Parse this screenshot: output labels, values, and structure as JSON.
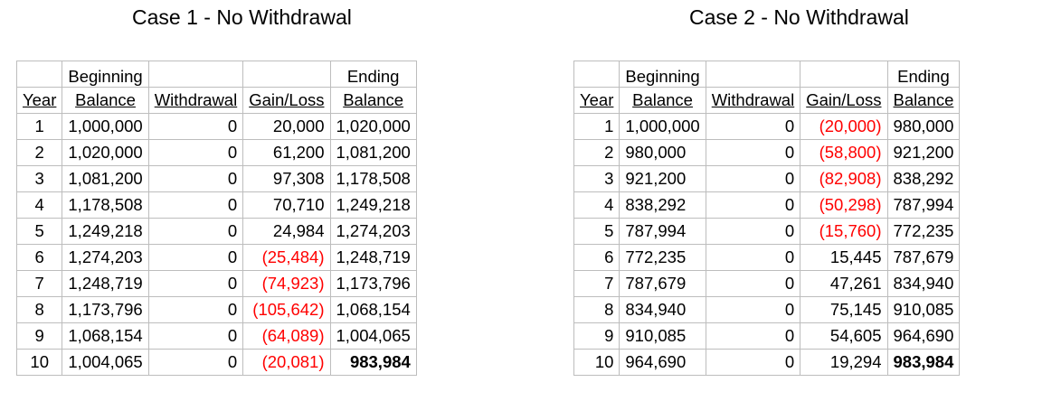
{
  "cases": [
    {
      "title": "Case 1 - No Withdrawal",
      "headers": {
        "row1": [
          "",
          "Beginning",
          "",
          "",
          "Ending"
        ],
        "row2": [
          "Year",
          "Balance",
          "Withdrawal",
          "Gain/Loss",
          "Balance"
        ]
      },
      "rows": [
        {
          "year": "1",
          "beginning": "1,000,000",
          "withdrawal": "0",
          "gain_loss": "20,000",
          "ending": "1,020,000"
        },
        {
          "year": "2",
          "beginning": "1,020,000",
          "withdrawal": "0",
          "gain_loss": "61,200",
          "ending": "1,081,200"
        },
        {
          "year": "3",
          "beginning": "1,081,200",
          "withdrawal": "0",
          "gain_loss": "97,308",
          "ending": "1,178,508"
        },
        {
          "year": "4",
          "beginning": "1,178,508",
          "withdrawal": "0",
          "gain_loss": "70,710",
          "ending": "1,249,218"
        },
        {
          "year": "5",
          "beginning": "1,249,218",
          "withdrawal": "0",
          "gain_loss": "24,984",
          "ending": "1,274,203"
        },
        {
          "year": "6",
          "beginning": "1,274,203",
          "withdrawal": "0",
          "gain_loss": "(25,484)",
          "ending": "1,248,719"
        },
        {
          "year": "7",
          "beginning": "1,248,719",
          "withdrawal": "0",
          "gain_loss": "(74,923)",
          "ending": "1,173,796"
        },
        {
          "year": "8",
          "beginning": "1,173,796",
          "withdrawal": "0",
          "gain_loss": "(105,642)",
          "ending": "1,068,154"
        },
        {
          "year": "9",
          "beginning": "1,068,154",
          "withdrawal": "0",
          "gain_loss": "(64,089)",
          "ending": "1,004,065"
        },
        {
          "year": "10",
          "beginning": "1,004,065",
          "withdrawal": "0",
          "gain_loss": "(20,081)",
          "ending": "983,984"
        }
      ]
    },
    {
      "title": "Case 2 - No Withdrawal",
      "headers": {
        "row1": [
          "",
          "Beginning",
          "",
          "",
          "Ending"
        ],
        "row2": [
          "Year",
          "Balance",
          "Withdrawal",
          "Gain/Loss",
          "Balance"
        ]
      },
      "rows": [
        {
          "year": "1",
          "beginning": "1,000,000",
          "withdrawal": "0",
          "gain_loss": "(20,000)",
          "ending": "980,000"
        },
        {
          "year": "2",
          "beginning": "980,000",
          "withdrawal": "0",
          "gain_loss": "(58,800)",
          "ending": "921,200"
        },
        {
          "year": "3",
          "beginning": "921,200",
          "withdrawal": "0",
          "gain_loss": "(82,908)",
          "ending": "838,292"
        },
        {
          "year": "4",
          "beginning": "838,292",
          "withdrawal": "0",
          "gain_loss": "(50,298)",
          "ending": "787,994"
        },
        {
          "year": "5",
          "beginning": "787,994",
          "withdrawal": "0",
          "gain_loss": "(15,760)",
          "ending": "772,235"
        },
        {
          "year": "6",
          "beginning": "772,235",
          "withdrawal": "0",
          "gain_loss": "15,445",
          "ending": "787,679"
        },
        {
          "year": "7",
          "beginning": "787,679",
          "withdrawal": "0",
          "gain_loss": "47,261",
          "ending": "834,940"
        },
        {
          "year": "8",
          "beginning": "834,940",
          "withdrawal": "0",
          "gain_loss": "75,145",
          "ending": "910,085"
        },
        {
          "year": "9",
          "beginning": "910,085",
          "withdrawal": "0",
          "gain_loss": "54,605",
          "ending": "964,690"
        },
        {
          "year": "10",
          "beginning": "964,690",
          "withdrawal": "0",
          "gain_loss": "19,294",
          "ending": "983,984"
        }
      ]
    }
  ],
  "colors": {
    "negative": "#ff0000",
    "grid": "#bdbdbd"
  }
}
